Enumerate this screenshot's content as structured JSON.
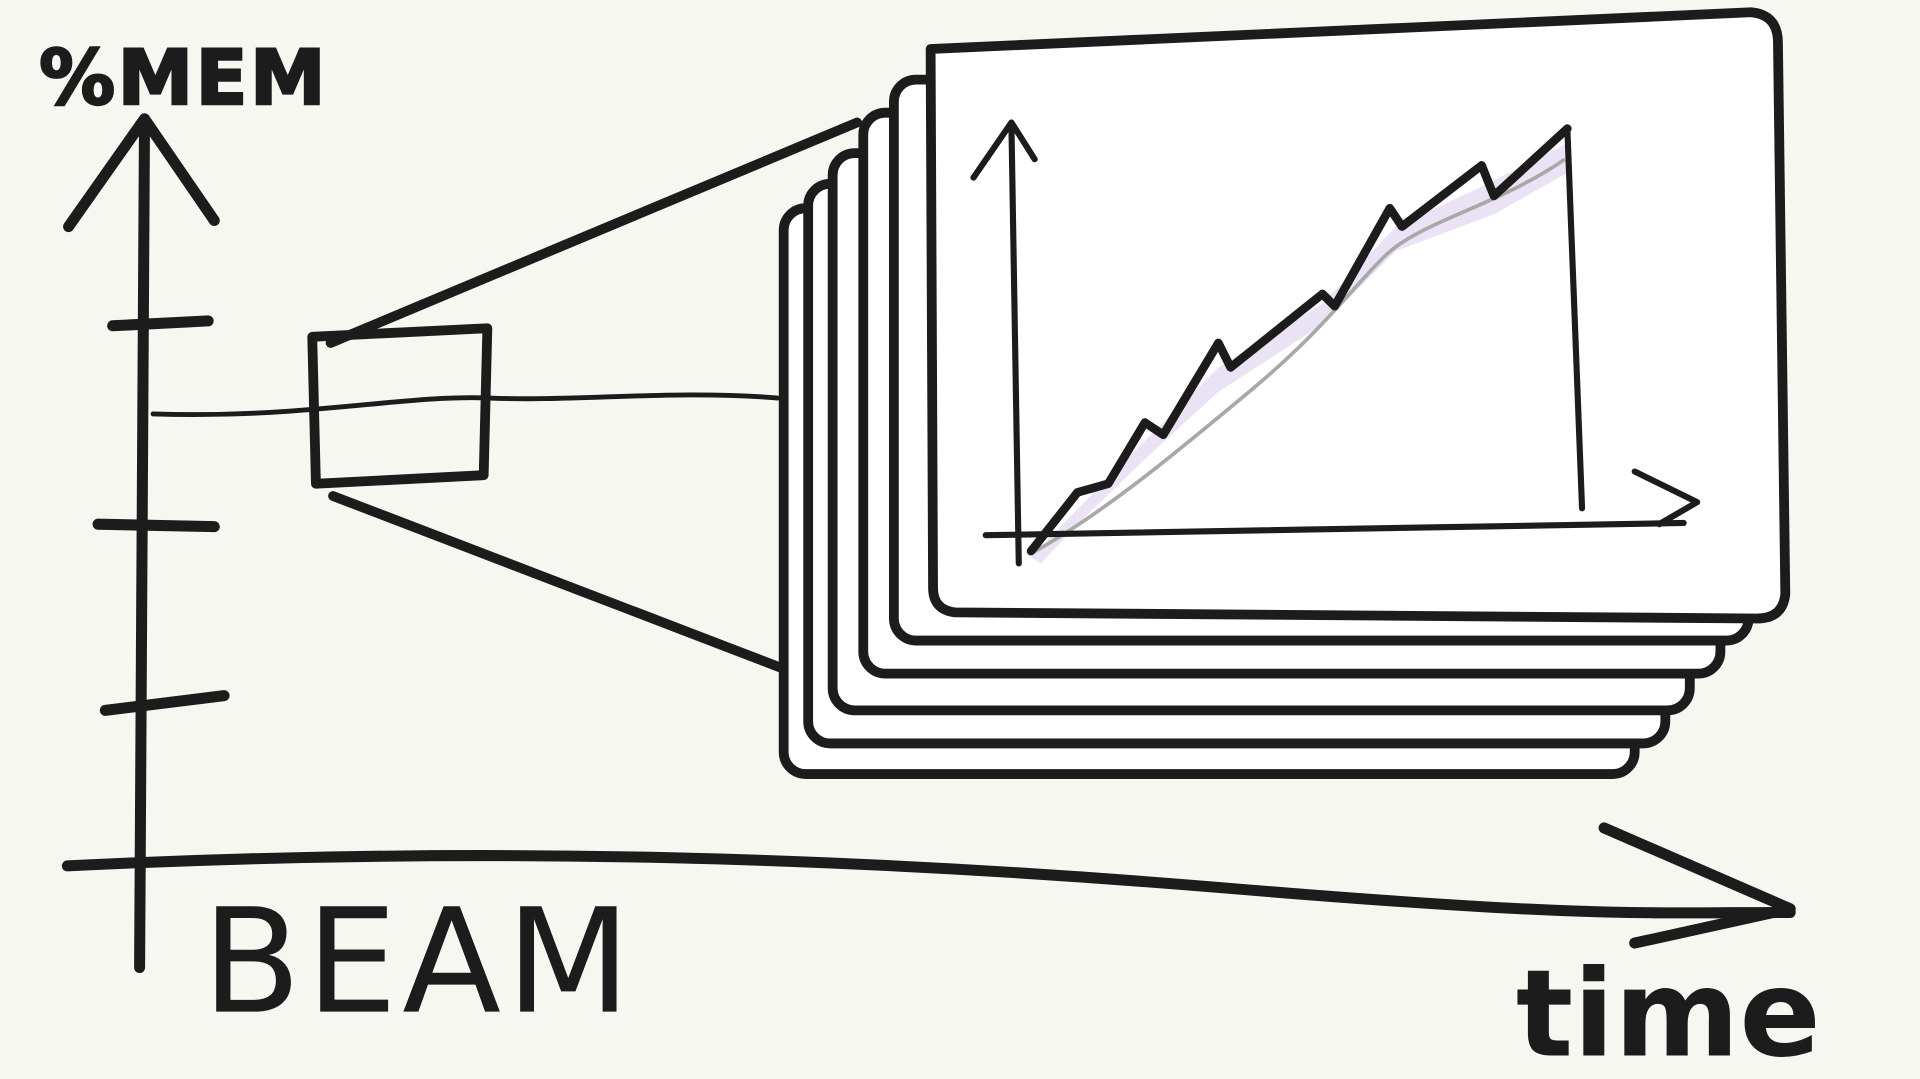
{
  "labels": {
    "y_axis": "%MEM",
    "x_axis_sub": "BEAM",
    "x_axis": "time"
  }
}
